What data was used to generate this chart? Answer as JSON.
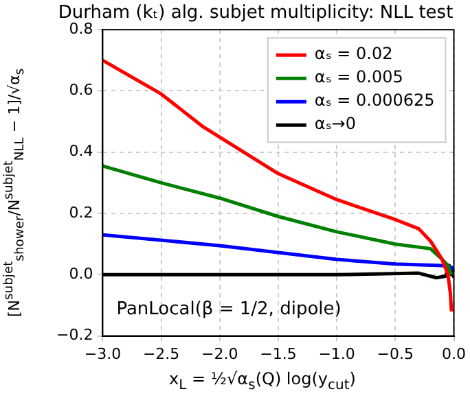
{
  "chart_data": {
    "type": "line",
    "title": "Durham (kₜ) alg. subjet multiplicity: NLL test",
    "xlabel": "x$_{L}$ = ½√α$_{s}$(Q) log(y$_{cut}$)",
    "ylabel": "[N$^{subjet}$$_{shower}$/N$^{subjet}$$_{NLL}$ − 1]/√α$_{s}$",
    "annotations": [
      "PanLocal(β = 1/2, dipole)"
    ],
    "xlim": [
      -3,
      0
    ],
    "ylim": [
      -0.2,
      0.8
    ],
    "xticks": [
      {
        "value": -3,
        "label": "−3.0"
      },
      {
        "value": -2.5,
        "label": "−2.5"
      },
      {
        "value": -2,
        "label": "−2.0"
      },
      {
        "value": -1.5,
        "label": "−1.5"
      },
      {
        "value": -1,
        "label": "−1.0"
      },
      {
        "value": -0.5,
        "label": "−0.5"
      },
      {
        "value": 0,
        "label": "0.0"
      }
    ],
    "yticks": [
      {
        "value": -0.2,
        "label": "−0.2"
      },
      {
        "value": 0,
        "label": "0.0"
      },
      {
        "value": 0.2,
        "label": "0.2"
      },
      {
        "value": 0.4,
        "label": "0.4"
      },
      {
        "value": 0.6,
        "label": "0.6"
      },
      {
        "value": 0.8,
        "label": "0.8"
      }
    ],
    "grid": true,
    "legend": "top right",
    "marker": "none",
    "line_style": "solid",
    "series": [
      {
        "name": "αₛ = 0.02",
        "color": "#ff0000",
        "x": [
          -3,
          -2.5,
          -2.15,
          -1.5,
          -1,
          -0.5,
          -0.3,
          -0.2,
          -0.1,
          -0.05,
          -0.03,
          -0.02
        ],
        "values": [
          0.7,
          0.59,
          0.485,
          0.33,
          0.245,
          0.18,
          0.15,
          0.11,
          0.05,
          0.0,
          -0.06,
          -0.12
        ]
      },
      {
        "name": "αₛ = 0.005",
        "color": "#008000",
        "x": [
          -3,
          -2.5,
          -2,
          -1.5,
          -1,
          -0.5,
          -0.2,
          -0.1,
          -0.05,
          -0.02
        ],
        "values": [
          0.355,
          0.3,
          0.25,
          0.19,
          0.14,
          0.1,
          0.085,
          0.05,
          0.03,
          0.0
        ]
      },
      {
        "name": "αₛ = 0.000625",
        "color": "#0000ff",
        "x": [
          -3,
          -2,
          -1,
          -0.5,
          -0.1,
          -0.03,
          0
        ],
        "values": [
          0.13,
          0.095,
          0.05,
          0.035,
          0.03,
          0.025,
          0.02
        ]
      },
      {
        "name": "αₛ→0",
        "color": "#000000",
        "x": [
          -3,
          -1,
          -0.3,
          -0.15,
          -0.07,
          -0.04,
          -0.02,
          -0.01,
          0
        ],
        "values": [
          0.0,
          0.0,
          0.005,
          -0.01,
          -0.005,
          0.03,
          0.0,
          0.02,
          -0.01
        ]
      }
    ]
  }
}
